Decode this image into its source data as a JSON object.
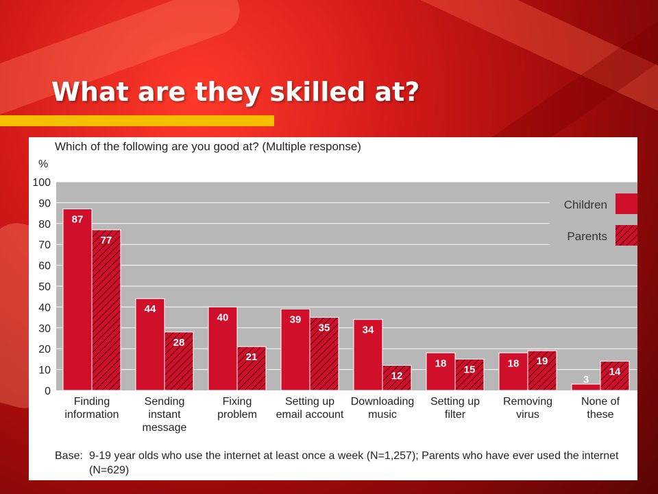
{
  "slide": {
    "title": "What are they skilled at?"
  },
  "chart_data": {
    "type": "bar",
    "title": "Which of the following are you good at? (Multiple response)",
    "ylabel": "%",
    "xlabel": "",
    "ylim": [
      0,
      100
    ],
    "yticks": [
      0,
      10,
      20,
      30,
      40,
      50,
      60,
      70,
      80,
      90,
      100
    ],
    "grid": true,
    "legend_position": "top-right",
    "categories": [
      "Finding information",
      "Sending instant message",
      "Fixing problem",
      "Setting up email account",
      "Downloading music",
      "Setting up filter",
      "Removing virus",
      "None of these"
    ],
    "category_lines": [
      [
        "Finding",
        "information"
      ],
      [
        "Sending",
        "instant",
        "message"
      ],
      [
        "Fixing",
        "problem"
      ],
      [
        "Setting up",
        "email account"
      ],
      [
        "Downloading",
        "music"
      ],
      [
        "Setting up",
        "filter"
      ],
      [
        "Removing",
        "virus"
      ],
      [
        "None of",
        "these"
      ]
    ],
    "series": [
      {
        "name": "Children",
        "values": [
          87,
          44,
          40,
          39,
          34,
          18,
          18,
          3
        ],
        "color": "#d0102a",
        "pattern": "solid"
      },
      {
        "name": "Parents",
        "values": [
          77,
          28,
          21,
          35,
          12,
          15,
          19,
          14
        ],
        "color": "#d0102a",
        "pattern": "hatched"
      }
    ]
  },
  "base_note": {
    "label": "Base:",
    "text": "9-19 year olds who use the internet at least once a week (N=1,257); Parents who have ever used the internet (N=629)"
  },
  "colors": {
    "bar_red": "#d0102a",
    "plot_background": "#b7b7b7",
    "title_underline": "#f5c000"
  }
}
